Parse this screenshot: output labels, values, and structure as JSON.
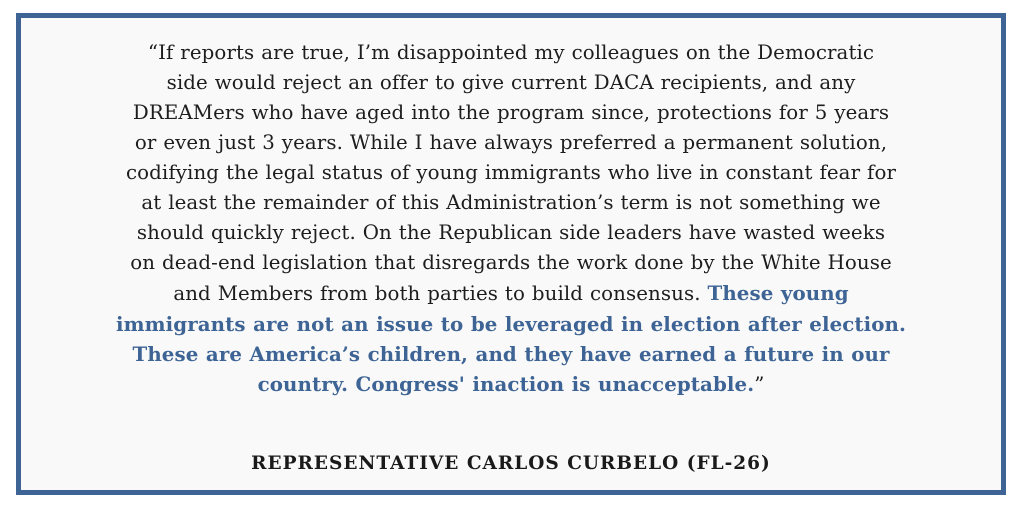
{
  "quote": {
    "lines": [
      "“If reports are true, I’m disappointed my colleagues on the Democratic",
      "side would reject an offer to give current DACA recipients, and any",
      "DREAMers who have aged into the program since, protections for 5 years",
      "or even just 3 years. While I have always preferred a permanent solution,",
      "codifying the legal status of young immigrants who live in constant fear for",
      "at least the remainder of this Administration’s term is not something we",
      "should quickly reject. On the Republican side leaders have wasted weeks",
      "on dead-end legislation that disregards the work done by the White House"
    ],
    "line9_plain": "and Members from both parties to build consensus. ",
    "line9_highlight": "These young",
    "highlight_lines": [
      "immigrants are not an issue to be leveraged in election after election.",
      "These are America’s children, and they have earned a future in our",
      "country. Congress' inaction is unacceptable."
    ],
    "closing_mark": "”"
  },
  "attribution": "REPRESENTATIVE CARLOS CURBELO (FL-26)",
  "colors": {
    "accent": "#3d6494",
    "text": "#1d1d1d",
    "panel_background": "#f9f9f9"
  }
}
